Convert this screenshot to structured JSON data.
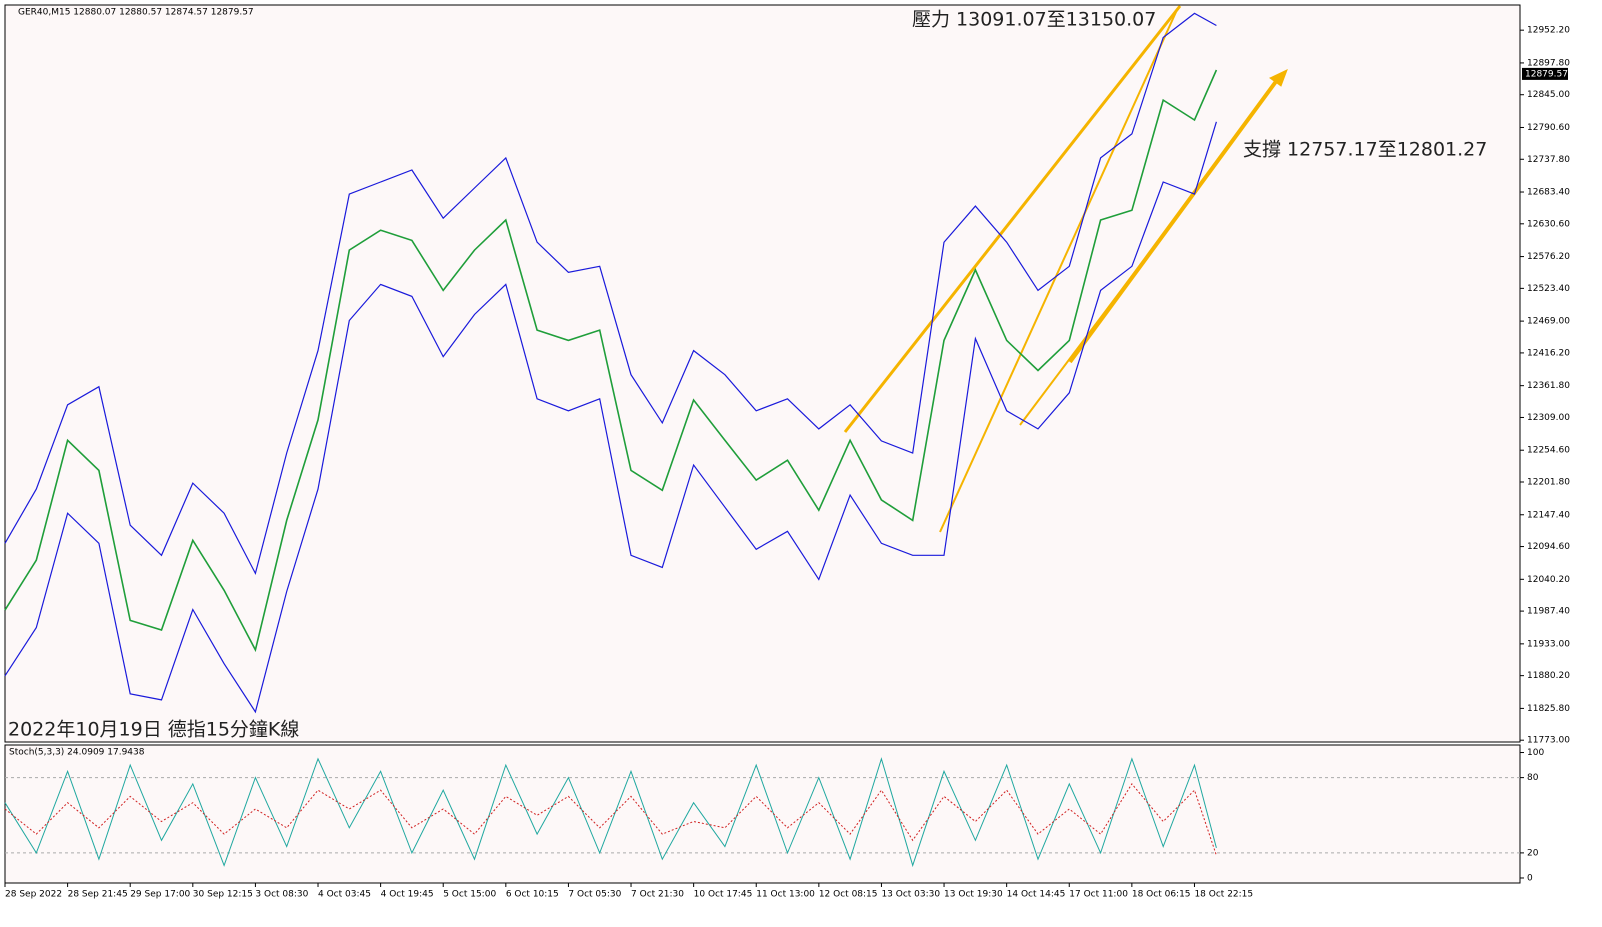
{
  "chart_data": {
    "type": "line",
    "header": "GER40,M15  12880.07 12880.57 12874.57 12879.57",
    "annotations": [
      "壓力 13091.07至13150.07",
      "支撐 12757.17至12801.27",
      "2022年10月19日 德指15分鐘K線"
    ],
    "last_price": {
      "value": 12879.57,
      "label": "12879.57"
    },
    "xlim": [
      0,
      24.2
    ],
    "xticks": [
      {
        "value": 0,
        "label": "28 Sep 2022"
      },
      {
        "value": 1,
        "label": "28 Sep 21:45"
      },
      {
        "value": 2,
        "label": "29 Sep 17:00"
      },
      {
        "value": 3,
        "label": "30 Sep 12:15"
      },
      {
        "value": 4,
        "label": "3 Oct 08:30"
      },
      {
        "value": 5,
        "label": "4 Oct 03:45"
      },
      {
        "value": 6,
        "label": "4 Oct 19:45"
      },
      {
        "value": 7,
        "label": "5 Oct 15:00"
      },
      {
        "value": 8,
        "label": "6 Oct 10:15"
      },
      {
        "value": 9,
        "label": "7 Oct 05:30"
      },
      {
        "value": 10,
        "label": "7 Oct 21:30"
      },
      {
        "value": 11,
        "label": "10 Oct 17:45"
      },
      {
        "value": 12,
        "label": "11 Oct 13:00"
      },
      {
        "value": 13,
        "label": "12 Oct 08:15"
      },
      {
        "value": 14,
        "label": "13 Oct 03:30"
      },
      {
        "value": 15,
        "label": "13 Oct 19:30"
      },
      {
        "value": 16,
        "label": "14 Oct 14:45"
      },
      {
        "value": 17,
        "label": "17 Oct 11:00"
      },
      {
        "value": 18,
        "label": "18 Oct 06:15"
      },
      {
        "value": 19,
        "label": "18 Oct 22:15"
      }
    ],
    "x": [
      0,
      0.5,
      1,
      1.5,
      2,
      2.5,
      3,
      3.5,
      4,
      4.5,
      5,
      5.5,
      6,
      6.5,
      7,
      7.5,
      8,
      8.5,
      9,
      9.5,
      10,
      10.5,
      11,
      11.5,
      12,
      12.5,
      13,
      13.5,
      14,
      14.5,
      15,
      15.5,
      16,
      16.5,
      17,
      17.5,
      18,
      18.5,
      19,
      19.35
    ],
    "ylim": [
      11770,
      12994
    ],
    "yticks": [
      {
        "value": 12952.2,
        "label": "12952.20"
      },
      {
        "value": 12897.8,
        "label": "12897.80"
      },
      {
        "value": 12845,
        "label": "12845.00"
      },
      {
        "value": 12790.6,
        "label": "12790.60"
      },
      {
        "value": 12737.8,
        "label": "12737.80"
      },
      {
        "value": 12683.4,
        "label": "12683.40"
      },
      {
        "value": 12630.6,
        "label": "12630.60"
      },
      {
        "value": 12576.2,
        "label": "12576.20"
      },
      {
        "value": 12523.4,
        "label": "12523.40"
      },
      {
        "value": 12469,
        "label": "12469.00"
      },
      {
        "value": 12416.2,
        "label": "12416.20"
      },
      {
        "value": 12361.8,
        "label": "12361.80"
      },
      {
        "value": 12309,
        "label": "12309.00"
      },
      {
        "value": 12254.6,
        "label": "12254.60"
      },
      {
        "value": 12201.8,
        "label": "12201.80"
      },
      {
        "value": 12147.4,
        "label": "12147.40"
      },
      {
        "value": 12094.6,
        "label": "12094.60"
      },
      {
        "value": 12040.2,
        "label": "12040.20"
      },
      {
        "value": 11987.4,
        "label": "11987.40"
      },
      {
        "value": 11933,
        "label": "11933.00"
      },
      {
        "value": 11880.2,
        "label": "11880.20"
      },
      {
        "value": 11825.8,
        "label": "11825.80"
      },
      {
        "value": 11773,
        "label": "11773.00"
      }
    ],
    "series": [
      {
        "name": "GER40,M15",
        "color": "#1f9e3a",
        "values": [
          11989,
          12072,
          12271,
          12221,
          11972,
          11956,
          12105,
          12022,
          11923,
          12138,
          12305,
          12587,
          12620,
          12603,
          12520,
          12587,
          12637,
          12454,
          12437,
          12454,
          12221,
          12188,
          12338,
          12271,
          12205,
          12238,
          12155,
          12271,
          12172,
          12138,
          12437,
          12554,
          12437,
          12387,
          12437,
          12637,
          12653,
          12836,
          12803,
          12886
        ]
      },
      {
        "color": "#1a1adb",
        "values": [
          12100,
          12190,
          12330,
          12360,
          12130,
          12080,
          12200,
          12150,
          12050,
          12250,
          12420,
          12680,
          12700,
          12720,
          12640,
          12690,
          12740,
          12600,
          12550,
          12560,
          12380,
          12300,
          12420,
          12380,
          12320,
          12340,
          12290,
          12330,
          12270,
          12250,
          12600,
          12660,
          12600,
          12520,
          12560,
          12740,
          12780,
          12940,
          12980,
          12960
        ]
      },
      {
        "color": "#1a1adb",
        "values": [
          11880,
          11960,
          12150,
          12100,
          11850,
          11840,
          11990,
          11900,
          11820,
          12020,
          12190,
          12470,
          12530,
          12510,
          12410,
          12480,
          12530,
          12340,
          12320,
          12340,
          12080,
          12060,
          12230,
          12160,
          12090,
          12120,
          12040,
          12180,
          12100,
          12080,
          12080,
          12440,
          12320,
          12290,
          12350,
          12520,
          12560,
          12700,
          12680,
          12800
        ]
      }
    ],
    "stoch": {
      "label": "Stoch(5,3,3) 24.0909 17.9438",
      "ylim": [
        -4,
        106
      ],
      "yticks": [
        100,
        80,
        20,
        0
      ],
      "levels": [
        80,
        20
      ],
      "series": [
        {
          "color": "#20a8a0",
          "values": [
            60,
            20,
            85,
            15,
            90,
            30,
            75,
            10,
            80,
            25,
            95,
            40,
            85,
            20,
            70,
            15,
            90,
            35,
            80,
            20,
            85,
            15,
            60,
            25,
            90,
            20,
            80,
            15,
            95,
            10,
            85,
            30,
            90,
            15,
            75,
            20,
            95,
            25,
            90,
            24
          ]
        },
        {
          "color": "#d02020",
          "values": [
            55,
            35,
            60,
            40,
            65,
            45,
            60,
            35,
            55,
            40,
            70,
            55,
            70,
            40,
            55,
            35,
            65,
            50,
            65,
            40,
            65,
            35,
            45,
            40,
            65,
            40,
            60,
            35,
            70,
            30,
            65,
            45,
            70,
            35,
            55,
            35,
            75,
            45,
            70,
            18
          ]
        }
      ]
    }
  }
}
